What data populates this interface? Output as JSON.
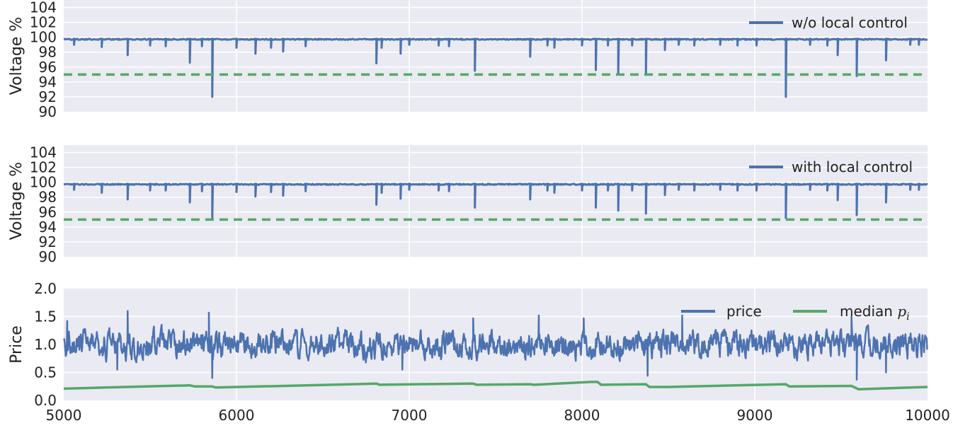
{
  "chart_data": [
    {
      "type": "line",
      "ylabel": "Voltage %",
      "xlim": [
        5000,
        10000
      ],
      "ylim": [
        90,
        105
      ],
      "xticks": [
        "5000",
        "6000",
        "7000",
        "8000",
        "9000",
        "10000"
      ],
      "yticks": [
        "90",
        "92",
        "94",
        "96",
        "98",
        "100",
        "102",
        "104"
      ],
      "grid": true,
      "legend_position": "top-right",
      "series": [
        {
          "name": "w/o local control",
          "color": "#4c72b0",
          "baseline": 99.8,
          "dips": [
            [
              5060,
              99.0
            ],
            [
              5220,
              98.7
            ],
            [
              5370,
              97.6
            ],
            [
              5500,
              98.9
            ],
            [
              5590,
              98.8
            ],
            [
              5730,
              96.6
            ],
            [
              5800,
              98.8
            ],
            [
              5860,
              92.0
            ],
            [
              6000,
              98.6
            ],
            [
              6110,
              97.8
            ],
            [
              6200,
              98.6
            ],
            [
              6270,
              98.1
            ],
            [
              6400,
              98.8
            ],
            [
              6810,
              96.5
            ],
            [
              6840,
              98.6
            ],
            [
              6950,
              97.8
            ],
            [
              7000,
              99.0
            ],
            [
              7170,
              98.9
            ],
            [
              7230,
              98.8
            ],
            [
              7380,
              95.5
            ],
            [
              7700,
              97.4
            ],
            [
              7800,
              98.9
            ],
            [
              7840,
              98.6
            ],
            [
              8000,
              98.9
            ],
            [
              8080,
              95.6
            ],
            [
              8150,
              98.9
            ],
            [
              8210,
              95.1
            ],
            [
              8290,
              98.9
            ],
            [
              8370,
              95.2
            ],
            [
              8480,
              98.3
            ],
            [
              8560,
              99.0
            ],
            [
              8650,
              98.9
            ],
            [
              8800,
              99.0
            ],
            [
              8900,
              98.9
            ],
            [
              9010,
              98.9
            ],
            [
              9180,
              92.0
            ],
            [
              9320,
              99.0
            ],
            [
              9420,
              98.9
            ],
            [
              9480,
              97.6
            ],
            [
              9590,
              94.8
            ],
            [
              9760,
              96.9
            ],
            [
              9900,
              99.0
            ],
            [
              9950,
              99.0
            ]
          ]
        },
        {
          "name": "",
          "color": "#55a868",
          "style": "dashed",
          "y": 95.0
        }
      ]
    },
    {
      "type": "line",
      "ylabel": "Voltage %",
      "xlim": [
        5000,
        10000
      ],
      "ylim": [
        90,
        105
      ],
      "xticks": [
        "5000",
        "6000",
        "7000",
        "8000",
        "9000",
        "10000"
      ],
      "yticks": [
        "90",
        "92",
        "94",
        "96",
        "98",
        "100",
        "102",
        "104"
      ],
      "grid": true,
      "legend_position": "top-right",
      "series": [
        {
          "name": "with local control",
          "color": "#4c72b0",
          "baseline": 99.8,
          "dips": [
            [
              5060,
              99.0
            ],
            [
              5220,
              98.6
            ],
            [
              5370,
              97.7
            ],
            [
              5500,
              98.9
            ],
            [
              5590,
              98.9
            ],
            [
              5730,
              97.3
            ],
            [
              5800,
              98.8
            ],
            [
              5860,
              95.0
            ],
            [
              6000,
              98.7
            ],
            [
              6110,
              98.1
            ],
            [
              6200,
              98.7
            ],
            [
              6270,
              98.2
            ],
            [
              6400,
              98.8
            ],
            [
              6810,
              97.0
            ],
            [
              6840,
              98.6
            ],
            [
              6950,
              97.8
            ],
            [
              7000,
              99.0
            ],
            [
              7170,
              98.9
            ],
            [
              7230,
              98.8
            ],
            [
              7380,
              96.6
            ],
            [
              7700,
              97.7
            ],
            [
              7800,
              98.9
            ],
            [
              7840,
              98.6
            ],
            [
              8000,
              98.9
            ],
            [
              8080,
              96.6
            ],
            [
              8150,
              98.9
            ],
            [
              8210,
              96.2
            ],
            [
              8290,
              98.9
            ],
            [
              8370,
              95.8
            ],
            [
              8480,
              98.3
            ],
            [
              8560,
              99.0
            ],
            [
              8650,
              98.9
            ],
            [
              8800,
              99.0
            ],
            [
              8900,
              98.9
            ],
            [
              9010,
              98.9
            ],
            [
              9180,
              95.2
            ],
            [
              9320,
              99.0
            ],
            [
              9420,
              98.9
            ],
            [
              9480,
              97.6
            ],
            [
              9590,
              95.6
            ],
            [
              9760,
              97.3
            ],
            [
              9900,
              99.0
            ],
            [
              9950,
              99.0
            ]
          ]
        },
        {
          "name": "",
          "color": "#55a868",
          "style": "dashed",
          "y": 95.0
        }
      ]
    },
    {
      "type": "line",
      "ylabel": "Price",
      "xlim": [
        5000,
        10000
      ],
      "ylim": [
        0.0,
        2.0
      ],
      "xticks": [
        "5000",
        "6000",
        "7000",
        "8000",
        "9000",
        "10000"
      ],
      "yticks": [
        "0.0",
        "0.5",
        "1.0",
        "1.5",
        "2.0"
      ],
      "grid": true,
      "legend_position": "top-right",
      "series": [
        {
          "name": "price",
          "color": "#4c72b0",
          "mean": 1.0,
          "amplitude": 0.2,
          "peaks": [
            [
              5020,
              1.42
            ],
            [
              5370,
              1.6
            ],
            [
              5860,
              0.4
            ],
            [
              5840,
              1.57
            ],
            [
              5310,
              0.55
            ],
            [
              6960,
              0.55
            ],
            [
              7370,
              1.47
            ],
            [
              7750,
              1.52
            ],
            [
              8010,
              1.47
            ],
            [
              8380,
              0.44
            ],
            [
              8580,
              1.52
            ],
            [
              9590,
              0.37
            ],
            [
              9560,
              1.5
            ],
            [
              9760,
              0.5
            ]
          ]
        },
        {
          "name": "median",
          "name_subscript": "i",
          "legend_math": "p",
          "color": "#55a868",
          "points": [
            [
              5000,
              0.21
            ],
            [
              5240,
              0.23
            ],
            [
              5730,
              0.27
            ],
            [
              5760,
              0.25
            ],
            [
              5860,
              0.25
            ],
            [
              5880,
              0.23
            ],
            [
              6810,
              0.3
            ],
            [
              6830,
              0.28
            ],
            [
              7050,
              0.29
            ],
            [
              7370,
              0.3
            ],
            [
              7390,
              0.28
            ],
            [
              7700,
              0.29
            ],
            [
              7720,
              0.28
            ],
            [
              8050,
              0.33
            ],
            [
              8090,
              0.33
            ],
            [
              8110,
              0.28
            ],
            [
              8370,
              0.29
            ],
            [
              8390,
              0.24
            ],
            [
              8500,
              0.24
            ],
            [
              9180,
              0.29
            ],
            [
              9200,
              0.25
            ],
            [
              9560,
              0.26
            ],
            [
              9600,
              0.2
            ],
            [
              10000,
              0.24
            ]
          ]
        }
      ]
    }
  ]
}
